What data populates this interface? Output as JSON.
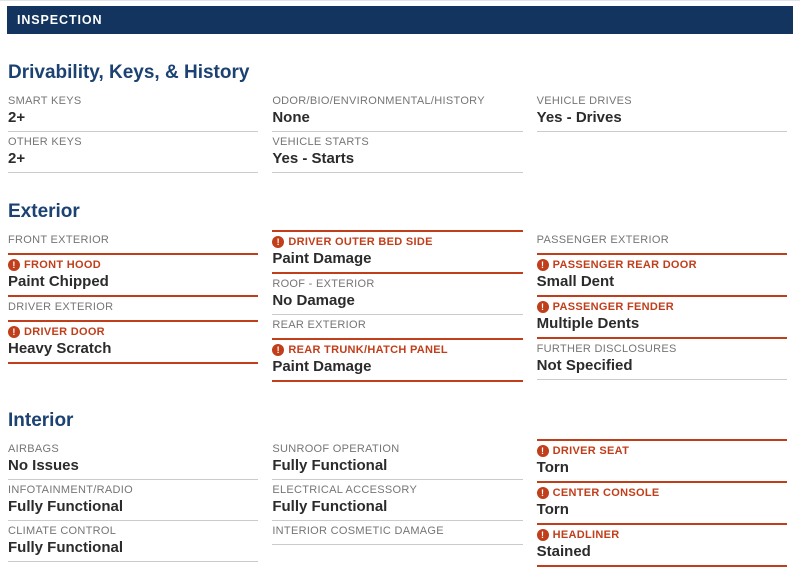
{
  "colors": {
    "navy_bar": "#12345E",
    "section_title_blue": "#1B4272",
    "flag_orange": "#C13E1B",
    "label_gray": "#757575",
    "divider_gray": "#CBCBCB",
    "value_dark": "#2B2B2B"
  },
  "header": {
    "title": "INSPECTION"
  },
  "icons": {
    "warning": "warning-icon",
    "warning_glyph": "!"
  },
  "sections": [
    {
      "title": "Drivability, Keys, & History",
      "columns": [
        {
          "fields": [
            {
              "label": "SMART KEYS",
              "value": "2+",
              "flagged": false
            },
            {
              "label": "OTHER KEYS",
              "value": "2+",
              "flagged": false
            }
          ]
        },
        {
          "fields": [
            {
              "label": "ODOR/BIO/ENVIRONMENTAL/HISTORY",
              "value": "None",
              "flagged": false
            },
            {
              "label": "VEHICLE STARTS",
              "value": "Yes - Starts",
              "flagged": false
            }
          ]
        },
        {
          "fields": [
            {
              "label": "VEHICLE DRIVES",
              "value": "Yes - Drives",
              "flagged": false
            }
          ]
        }
      ]
    },
    {
      "title": "Exterior",
      "columns": [
        {
          "fields": [
            {
              "label": "FRONT EXTERIOR",
              "value": "",
              "flagged": false
            },
            {
              "label": "FRONT HOOD",
              "value": "Paint Chipped",
              "flagged": true
            },
            {
              "label": "DRIVER EXTERIOR",
              "value": "",
              "flagged": false
            },
            {
              "label": "DRIVER DOOR",
              "value": "Heavy Scratch",
              "flagged": true
            }
          ]
        },
        {
          "fields": [
            {
              "label": "DRIVER OUTER BED SIDE",
              "value": "Paint Damage",
              "flagged": true
            },
            {
              "label": "ROOF - EXTERIOR",
              "value": "No Damage",
              "flagged": false
            },
            {
              "label": "REAR EXTERIOR",
              "value": "",
              "flagged": false
            },
            {
              "label": "REAR TRUNK/HATCH PANEL",
              "value": "Paint Damage",
              "flagged": true
            }
          ]
        },
        {
          "fields": [
            {
              "label": "PASSENGER EXTERIOR",
              "value": "",
              "flagged": false
            },
            {
              "label": "PASSENGER REAR DOOR",
              "value": "Small Dent",
              "flagged": true
            },
            {
              "label": "PASSENGER FENDER",
              "value": "Multiple Dents",
              "flagged": true
            },
            {
              "label": "FURTHER DISCLOSURES",
              "value": "Not Specified",
              "flagged": false
            }
          ]
        }
      ]
    },
    {
      "title": "Interior",
      "columns": [
        {
          "fields": [
            {
              "label": "AIRBAGS",
              "value": "No Issues",
              "flagged": false
            },
            {
              "label": "INFOTAINMENT/RADIO",
              "value": "Fully Functional",
              "flagged": false
            },
            {
              "label": "CLIMATE CONTROL",
              "value": "Fully Functional",
              "flagged": false
            }
          ]
        },
        {
          "fields": [
            {
              "label": "SUNROOF OPERATION",
              "value": "Fully Functional",
              "flagged": false
            },
            {
              "label": "ELECTRICAL ACCESSORY",
              "value": "Fully Functional",
              "flagged": false
            },
            {
              "label": "INTERIOR COSMETIC DAMAGE",
              "value": "",
              "flagged": false
            }
          ]
        },
        {
          "fields": [
            {
              "label": "DRIVER SEAT",
              "value": "Torn",
              "flagged": true
            },
            {
              "label": "CENTER CONSOLE",
              "value": "Torn",
              "flagged": true
            },
            {
              "label": "HEADLINER",
              "value": "Stained",
              "flagged": true
            }
          ]
        }
      ]
    }
  ]
}
